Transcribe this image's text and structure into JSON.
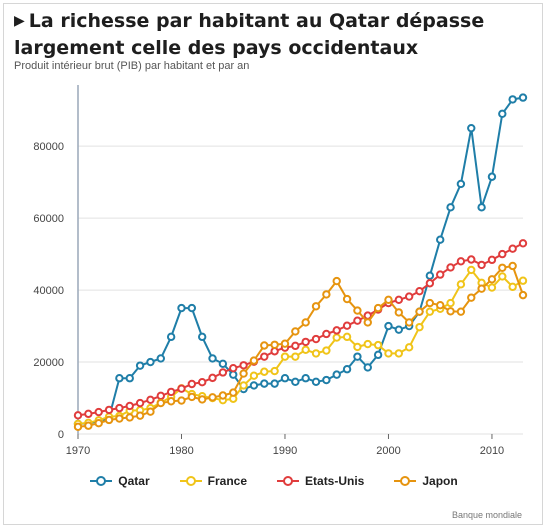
{
  "header": {
    "title": "La richesse par habitant au Qatar dépasse largement celle des pays occidentaux",
    "subtitle": "Produit intérieur brut (PIB) par habitant et par an",
    "source": "Banque mondiale"
  },
  "chart_data": {
    "type": "line",
    "title": "La richesse par habitant au Qatar dépasse largement celle des pays occidentaux",
    "subtitle": "Produit intérieur brut (PIB) par habitant et par an",
    "xlabel": "",
    "ylabel": "",
    "xlim": [
      1970,
      2013
    ],
    "ylim": [
      0,
      97000
    ],
    "x_ticks": [
      1970,
      1980,
      1990,
      2000,
      2010
    ],
    "y_ticks": [
      0,
      20000,
      40000,
      60000,
      80000
    ],
    "grid": "horizontal",
    "legend": "bottom",
    "x": [
      1970,
      1971,
      1972,
      1973,
      1974,
      1975,
      1976,
      1977,
      1978,
      1979,
      1980,
      1981,
      1982,
      1983,
      1984,
      1985,
      1986,
      1987,
      1988,
      1989,
      1990,
      1991,
      1992,
      1993,
      1994,
      1995,
      1996,
      1997,
      1998,
      1999,
      2000,
      2001,
      2002,
      2003,
      2004,
      2005,
      2006,
      2007,
      2008,
      2009,
      2010,
      2011,
      2012,
      2013
    ],
    "series": [
      {
        "name": "Qatar",
        "color": "#1f7ea8",
        "values": [
          2800,
          3000,
          3500,
          4500,
          15500,
          15500,
          19000,
          20000,
          21000,
          27000,
          35000,
          35000,
          27000,
          21000,
          19500,
          16500,
          12500,
          13500,
          14000,
          14000,
          15500,
          14500,
          15500,
          14500,
          15000,
          16500,
          18000,
          21500,
          18500,
          22000,
          30000,
          29000,
          30000,
          34000,
          44000,
          54000,
          63000,
          69500,
          85000,
          63000,
          71500,
          89000,
          93000,
          93500
        ]
      },
      {
        "name": "France",
        "color": "#f0c419",
        "values": [
          2800,
          3100,
          3800,
          4800,
          5000,
          6500,
          6600,
          7200,
          8700,
          10300,
          12700,
          11100,
          10500,
          10000,
          9400,
          9800,
          13500,
          16200,
          17300,
          17500,
          21500,
          21500,
          23400,
          22400,
          23200,
          26800,
          27000,
          24200,
          25000,
          24700,
          22400,
          22400,
          24100,
          29700,
          34000,
          34800,
          36400,
          41600,
          45600,
          42000,
          40700,
          43800,
          40900,
          42600
        ]
      },
      {
        "name": "Etats-Unis",
        "color": "#e03c3c",
        "values": [
          5200,
          5600,
          6100,
          6700,
          7200,
          7800,
          8600,
          9500,
          10600,
          11700,
          12600,
          13900,
          14400,
          15600,
          17100,
          18300,
          19100,
          20100,
          21500,
          23000,
          24000,
          24500,
          25600,
          26400,
          27800,
          28800,
          30100,
          31500,
          32900,
          34600,
          36400,
          37300,
          38200,
          39700,
          41900,
          44300,
          46300,
          48000,
          48500,
          47000,
          48400,
          50000,
          51500,
          53000
        ]
      },
      {
        "name": "Japon",
        "color": "#e6940f",
        "values": [
          2000,
          2300,
          3000,
          3900,
          4300,
          4600,
          5100,
          6200,
          8600,
          9100,
          9300,
          10300,
          9600,
          10200,
          10700,
          11500,
          16800,
          20400,
          24600,
          24800,
          25100,
          28500,
          31000,
          35500,
          38800,
          42500,
          37500,
          34300,
          31000,
          35000,
          37300,
          33800,
          31000,
          34000,
          36400,
          35800,
          34100,
          34000,
          37900,
          40400,
          43000,
          46200,
          46700,
          38600
        ]
      }
    ]
  }
}
